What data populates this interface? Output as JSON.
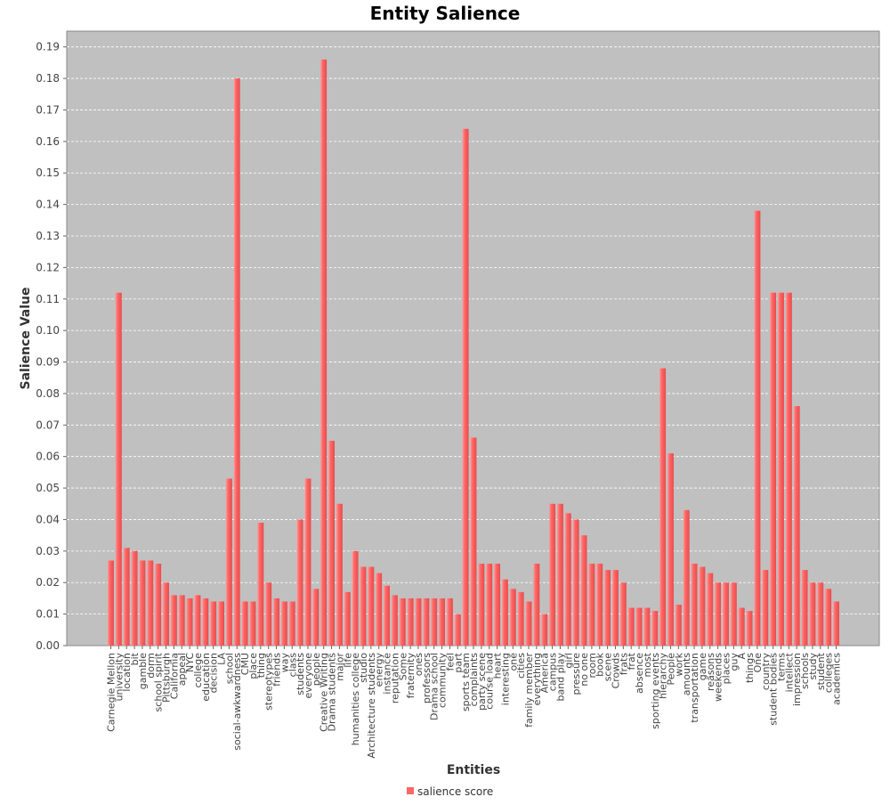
{
  "chart_data": {
    "type": "bar",
    "title": "Entity Salience",
    "xlabel": "Entities",
    "ylabel": "Salience Value",
    "ylim": [
      0,
      0.195
    ],
    "yticks": [
      "0.00",
      "0.01",
      "0.02",
      "0.03",
      "0.04",
      "0.05",
      "0.06",
      "0.07",
      "0.08",
      "0.09",
      "0.10",
      "0.11",
      "0.12",
      "0.13",
      "0.14",
      "0.15",
      "0.16",
      "0.17",
      "0.18",
      "0.19"
    ],
    "grid": true,
    "legend_position": "bottom-center",
    "colors": {
      "bar": "#ff6666",
      "plot_bg": "#c0c0c0",
      "grid": "#ffffff"
    },
    "categories": [
      "Carnegie Mellon",
      "university",
      "location",
      "bit",
      "gamble",
      "dorm",
      "school spirit",
      "Pittsburgh",
      "California",
      "appeal",
      "NYC",
      "college",
      "education",
      "decision",
      "LA",
      "school",
      "social-awkwardness",
      "CMU",
      "place",
      "thing",
      "stereotypes",
      "friends",
      "way",
      "class",
      "students",
      "everyone",
      "people",
      "Creative Writing",
      "Drama students",
      "major",
      "life",
      "humanities college",
      "studio",
      "Architecture students",
      "energy",
      "instance",
      "reputation",
      "Some",
      "fraternity",
      "ones",
      "professors",
      "Drama school",
      "community",
      "feel",
      "part",
      "sports team",
      "complaints",
      "party scene",
      "course load",
      "heart",
      "interesting",
      "one",
      "cities",
      "family member",
      "everything",
      "America",
      "campus",
      "band play",
      "girl",
      "pressure",
      "no one",
      "room",
      "book",
      "scene",
      "Crowds",
      "frats",
      "frat",
      "absence",
      "most",
      "sporting events",
      "hierarchy",
      "People",
      "work",
      "amounts",
      "transportation",
      "game",
      "reasons",
      "weekends",
      "places",
      "guy",
      "A",
      "things",
      "One",
      "country",
      "student bodies",
      "terms",
      "intellect",
      "impression",
      "schools",
      "study",
      "student",
      "colleges",
      "academics"
    ],
    "series": [
      {
        "name": "salience score",
        "values": [
          0.027,
          0.112,
          0.031,
          0.03,
          0.027,
          0.027,
          0.026,
          0.02,
          0.016,
          0.016,
          0.015,
          0.016,
          0.015,
          0.014,
          0.014,
          0.053,
          0.18,
          0.014,
          0.014,
          0.039,
          0.02,
          0.015,
          0.014,
          0.014,
          0.04,
          0.053,
          0.018,
          0.186,
          0.065,
          0.045,
          0.017,
          0.03,
          0.025,
          0.025,
          0.023,
          0.019,
          0.016,
          0.015,
          0.015,
          0.015,
          0.015,
          0.015,
          0.015,
          0.015,
          0.01,
          0.164,
          0.066,
          0.026,
          0.026,
          0.026,
          0.021,
          0.018,
          0.017,
          0.014,
          0.026,
          0.01,
          0.045,
          0.045,
          0.042,
          0.04,
          0.035,
          0.026,
          0.026,
          0.024,
          0.024,
          0.02,
          0.012,
          0.012,
          0.012,
          0.011,
          0.088,
          0.061,
          0.013,
          0.043,
          0.026,
          0.025,
          0.023,
          0.02,
          0.02,
          0.02,
          0.012,
          0.011,
          0.138,
          0.024,
          0.112,
          0.112,
          0.112,
          0.076,
          0.024,
          0.02,
          0.02,
          0.018,
          0.014
        ]
      }
    ]
  }
}
